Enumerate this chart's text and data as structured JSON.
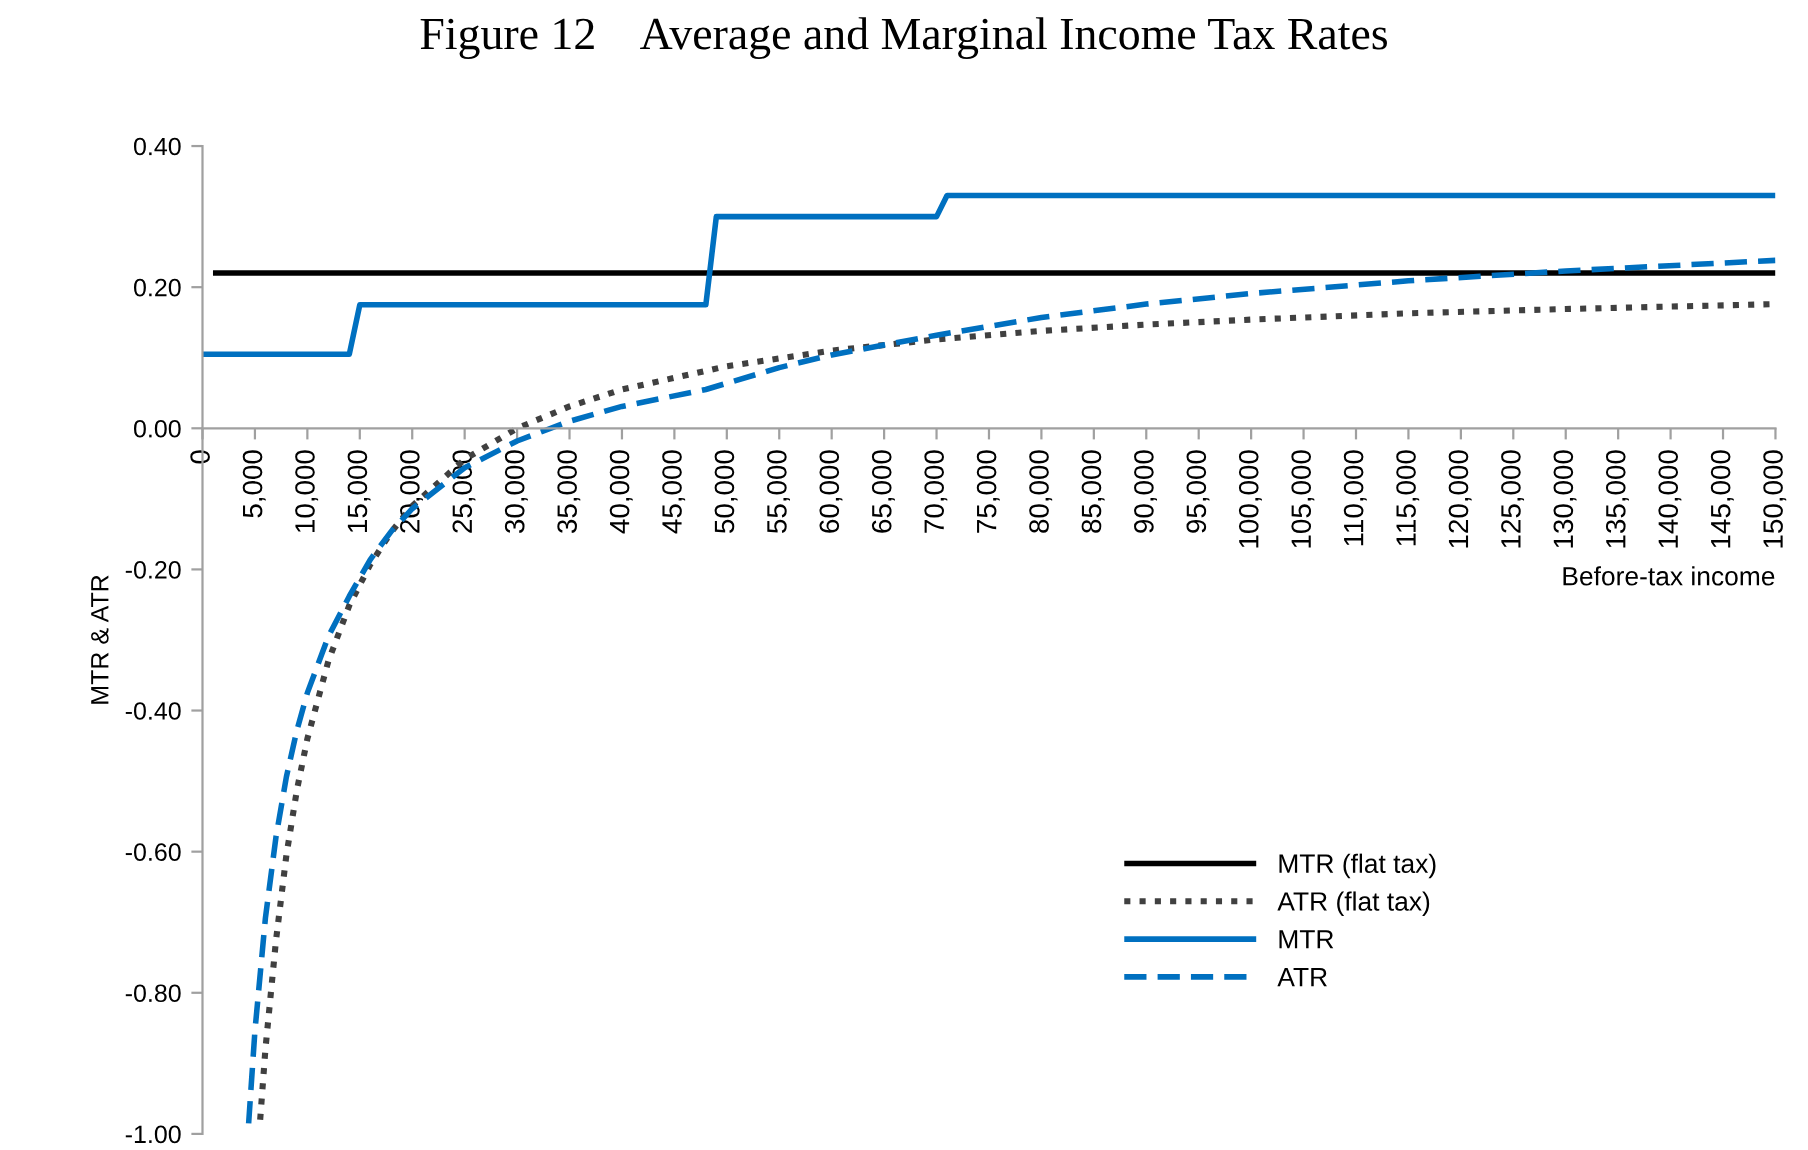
{
  "chart_data": {
    "type": "line",
    "title": "Figure 12    Average and Marginal Income Tax Rates",
    "xlabel": "Before-tax income",
    "ylabel": "MTR & ATR",
    "xlim": [
      0,
      150000
    ],
    "ylim": [
      -1.0,
      0.4
    ],
    "xticks": [
      0,
      {
        "value": 5000,
        "label": "5,000"
      },
      {
        "value": 10000,
        "label": "10,000"
      },
      {
        "value": 15000,
        "label": "15,000"
      },
      {
        "value": 20000,
        "label": "20,000"
      },
      {
        "value": 25000,
        "label": "25,000"
      },
      {
        "value": 30000,
        "label": "30,000"
      },
      {
        "value": 35000,
        "label": "35,000"
      },
      {
        "value": 40000,
        "label": "40,000"
      },
      {
        "value": 45000,
        "label": "45,000"
      },
      {
        "value": 50000,
        "label": "50,000"
      },
      {
        "value": 55000,
        "label": "55,000"
      },
      {
        "value": 60000,
        "label": "60,000"
      },
      {
        "value": 65000,
        "label": "65,000"
      },
      {
        "value": 70000,
        "label": "70,000"
      },
      {
        "value": 75000,
        "label": "75,000"
      },
      {
        "value": 80000,
        "label": "80,000"
      },
      {
        "value": 85000,
        "label": "85,000"
      },
      {
        "value": 90000,
        "label": "90,000"
      },
      {
        "value": 95000,
        "label": "95,000"
      },
      {
        "value": 100000,
        "label": "100,000"
      },
      {
        "value": 105000,
        "label": "105,000"
      },
      {
        "value": 110000,
        "label": "110,000"
      },
      {
        "value": 115000,
        "label": "115,000"
      },
      {
        "value": 120000,
        "label": "120,000"
      },
      {
        "value": 125000,
        "label": "125,000"
      },
      {
        "value": 130000,
        "label": "130,000"
      },
      {
        "value": 135000,
        "label": "135,000"
      },
      {
        "value": 140000,
        "label": "140,000"
      },
      {
        "value": 145000,
        "label": "145,000"
      },
      {
        "value": 150000,
        "label": "150,000"
      }
    ],
    "yticks": [
      {
        "value": -1.0,
        "label": "-1.00"
      },
      {
        "value": -0.8,
        "label": "-0.80"
      },
      {
        "value": -0.6,
        "label": "-0.60"
      },
      {
        "value": -0.4,
        "label": "-0.40"
      },
      {
        "value": -0.2,
        "label": "-0.20"
      },
      {
        "value": 0.0,
        "label": "0.00"
      },
      {
        "value": 0.2,
        "label": "0.20"
      },
      {
        "value": 0.4,
        "label": "0.40"
      }
    ],
    "grid": false,
    "legend": "bottom right",
    "marker": "none",
    "series": [
      {
        "name": "MTR (flat tax)",
        "color": "#000000",
        "line_style": "solid",
        "x": [
          1000,
          150000
        ],
        "values": [
          0.22,
          0.22
        ]
      },
      {
        "name": "ATR (flat tax)",
        "color": "#404040",
        "line_style": "dotted",
        "x": [
          5500,
          6000,
          7000,
          8000,
          9000,
          10000,
          12000,
          14000,
          16000,
          18000,
          20000,
          25000,
          30000,
          35000,
          40000,
          50000,
          60000,
          70000,
          80000,
          90000,
          100000,
          115000,
          130000,
          150000
        ],
        "values": [
          -0.98,
          -0.88,
          -0.727,
          -0.605,
          -0.513,
          -0.44,
          -0.33,
          -0.251,
          -0.193,
          -0.147,
          -0.11,
          -0.044,
          0.0,
          0.031,
          0.055,
          0.088,
          0.11,
          0.126,
          0.138,
          0.147,
          0.154,
          0.163,
          0.169,
          0.176
        ]
      },
      {
        "name": "MTR",
        "color": "#0070c0",
        "line_style": "solid",
        "x": [
          0,
          14000,
          15000,
          48000,
          49000,
          70000,
          71000,
          150000
        ],
        "values": [
          0.105,
          0.105,
          0.175,
          0.175,
          0.3,
          0.3,
          0.33,
          0.33
        ]
      },
      {
        "name": "ATR",
        "color": "#0070c0",
        "line_style": "dashed",
        "x": [
          4400,
          5000,
          6000,
          7000,
          8000,
          9000,
          10000,
          12000,
          14000,
          16000,
          18000,
          20000,
          25000,
          30000,
          35000,
          40000,
          48000,
          55000,
          60000,
          70000,
          80000,
          90000,
          100000,
          115000,
          130000,
          150000
        ],
        "values": [
          -0.985,
          -0.854,
          -0.694,
          -0.58,
          -0.494,
          -0.428,
          -0.375,
          -0.295,
          -0.238,
          -0.186,
          -0.146,
          -0.114,
          -0.056,
          -0.018,
          0.01,
          0.031,
          0.055,
          0.086,
          0.104,
          0.132,
          0.157,
          0.176,
          0.191,
          0.209,
          0.223,
          0.238
        ]
      }
    ]
  }
}
